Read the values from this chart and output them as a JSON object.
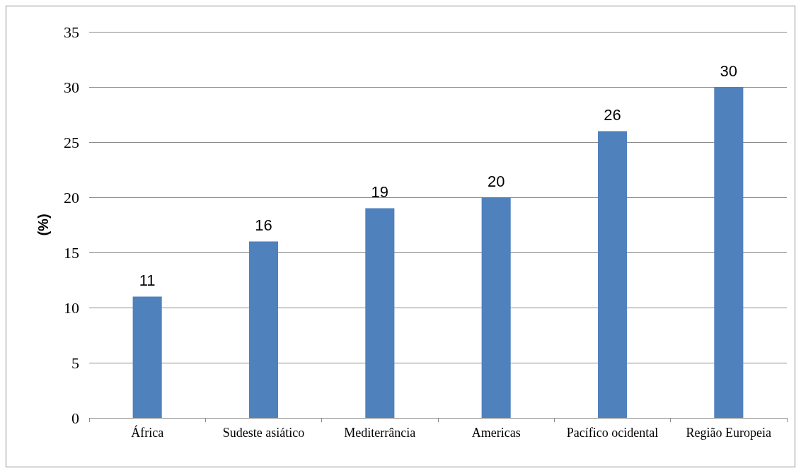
{
  "chart_data": {
    "type": "bar",
    "ylabel": "(%)",
    "categories": [
      "África",
      "Sudeste asiático",
      "Mediterrância",
      "Americas",
      "Pacífico ocidental",
      "Região Europeia"
    ],
    "values": [
      11,
      16,
      19,
      20,
      26,
      30
    ],
    "color": "#4f81bd",
    "ylim": [
      0,
      35
    ],
    "yticks": [
      0,
      5,
      10,
      15,
      20,
      25,
      30,
      35
    ],
    "grid": "y",
    "data_labels": true
  }
}
